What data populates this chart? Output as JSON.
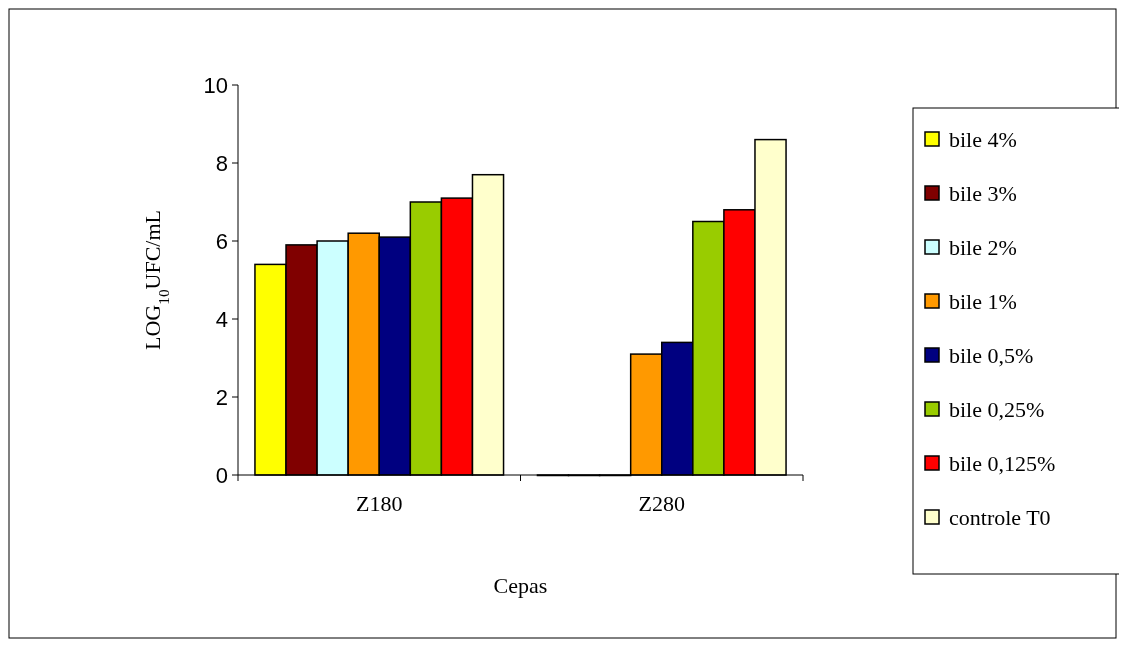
{
  "chart_data": {
    "type": "bar",
    "xlabel": "Cepas",
    "ylabel": "LOG$_{10}$UFC/mL",
    "categories": [
      "Z180",
      "Z280"
    ],
    "series": [
      {
        "name": "bile 4%",
        "color": "#ffff00",
        "values": [
          5.4,
          0
        ]
      },
      {
        "name": "bile 3%",
        "color": "#800000",
        "values": [
          5.9,
          0
        ]
      },
      {
        "name": "bile 2%",
        "color": "#ccffff",
        "values": [
          6.0,
          0
        ]
      },
      {
        "name": "bile 1%",
        "color": "#ff9900",
        "values": [
          6.2,
          3.1
        ]
      },
      {
        "name": "bile 0,5%",
        "color": "#000080",
        "values": [
          6.1,
          3.4
        ]
      },
      {
        "name": "bile 0,25%",
        "color": "#99cc00",
        "values": [
          7.0,
          6.5
        ]
      },
      {
        "name": "bile 0,125%",
        "color": "#ff0000",
        "values": [
          7.1,
          6.8
        ]
      },
      {
        "name": "controle T0",
        "color": "#ffffcc",
        "values": [
          7.7,
          8.6
        ]
      }
    ],
    "ylim": [
      0,
      10
    ],
    "yticks": [
      0,
      2,
      4,
      6,
      8,
      10
    ],
    "legend": "right",
    "grid": false
  }
}
